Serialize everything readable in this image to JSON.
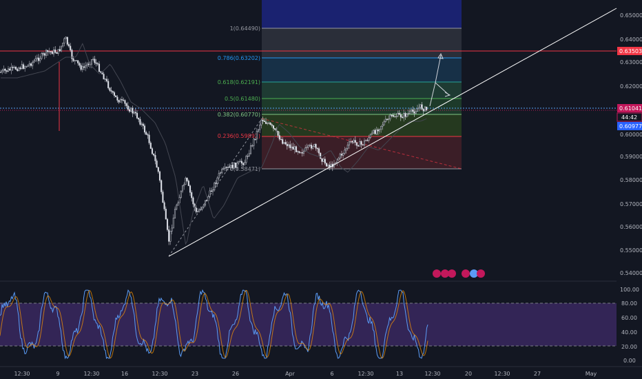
{
  "colors": {
    "background": "#131722",
    "candle_up": "#b2b5be",
    "candle_down": "#d1d4dc",
    "trendline": "#ffffff",
    "resistance_line": "#f23645",
    "current_price_line": "#5b9cf6",
    "rsi_fill": "#4a2f7a"
  },
  "price_axis": {
    "labels": [
      "0.65000",
      "0.64000",
      "0.63000",
      "0.62000",
      "0.61000",
      "0.60000",
      "0.59000",
      "0.58000",
      "0.57000",
      "0.56000",
      "0.55000",
      "0.54000"
    ],
    "badges": {
      "resistance": "0.63503",
      "current": "0.61041",
      "countdown": "44:42",
      "blue": "0.60977"
    }
  },
  "time_axis": {
    "labels": [
      "12:30",
      "9",
      "12:30",
      "16",
      "12:30",
      "23",
      "26",
      "Apr",
      "6",
      "12:30",
      "13",
      "12:30",
      "20",
      "12:30",
      "27",
      "May"
    ]
  },
  "fibonacci": {
    "levels": [
      {
        "label": "1(0.64490)",
        "price": 0.6449,
        "color": "#9598a1"
      },
      {
        "label": "0.786(0.63202)",
        "price": 0.63202,
        "color": "#2196f3"
      },
      {
        "label": "0.618(0.62191)",
        "price": 0.62191,
        "color": "#4caf50"
      },
      {
        "label": "0.5(0.61480)",
        "price": 0.6148,
        "color": "#4caf50"
      },
      {
        "label": "0.382(0.60770)",
        "price": 0.6077,
        "color": "#81c784"
      },
      {
        "label": "0.236(0.59892)",
        "price": 0.59892,
        "color": "#f23645"
      },
      {
        "label": "0(0.58471)",
        "price": 0.58471,
        "color": "#9598a1"
      }
    ]
  },
  "rsi": {
    "labels": [
      "100.00",
      "80.00",
      "60.00",
      "40.00",
      "20.00",
      "0.00"
    ],
    "upper": 80,
    "lower": 20
  }
}
